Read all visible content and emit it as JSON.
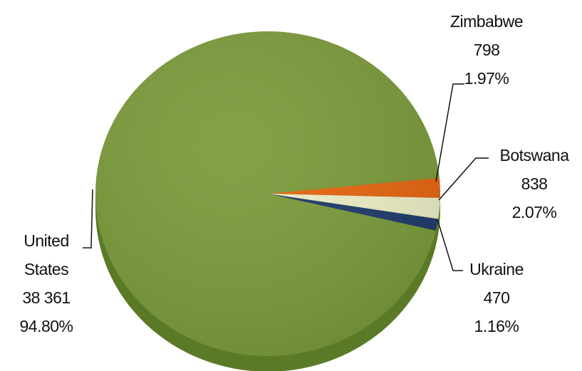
{
  "chart_data": {
    "type": "pie",
    "categories": [
      "Zimbabwe",
      "Botswana",
      "Ukraine",
      "United States"
    ],
    "values": [
      798,
      838,
      470,
      38361
    ],
    "value_labels": [
      "798",
      "838",
      "470",
      "38 361"
    ],
    "percents": [
      1.97,
      2.07,
      1.16,
      94.8
    ],
    "percent_labels": [
      "1.97%",
      "2.07%",
      "1.16%",
      "94.80%"
    ],
    "colors": [
      "#e8650f",
      "#eef0c8",
      "#1f3b6b",
      "#7b9b3b"
    ]
  }
}
